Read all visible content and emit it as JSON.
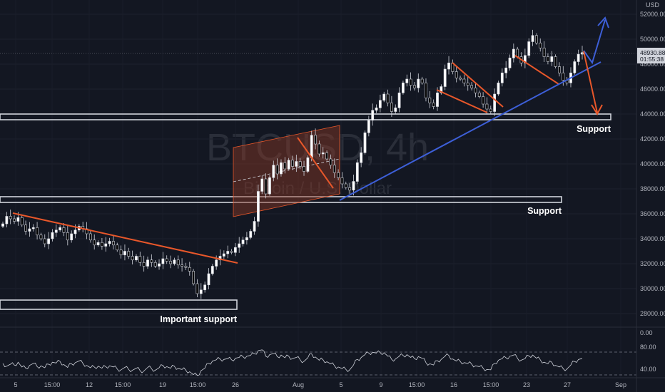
{
  "chart_data": {
    "type": "candlestick",
    "title": "BTCUSD, 4h",
    "subtitle": "Bitcoin / U.S. Dollar",
    "currency": "USD",
    "price_range": [
      27000,
      53000
    ],
    "price_ticks": [
      28000,
      30000,
      32000,
      34000,
      36000,
      38000,
      40000,
      42000,
      44000,
      46000,
      48000,
      50000,
      52000
    ],
    "x_ticks": [
      "5",
      "15:00",
      "12",
      "15:00",
      "19",
      "15:00",
      "26",
      "Aug",
      "5",
      "9",
      "15:00",
      "16",
      "15:00",
      "23",
      "27",
      "Sep"
    ],
    "last_price": "48930.88",
    "countdown": "01:55:38",
    "close_series": [
      35200,
      35800,
      35600,
      35400,
      35700,
      35100,
      34600,
      34800,
      34900,
      34300,
      34000,
      33600,
      34000,
      34500,
      34700,
      34900,
      34500,
      33900,
      34400,
      34700,
      35000,
      34800,
      34400,
      33900,
      33500,
      33700,
      33400,
      33600,
      33800,
      33500,
      33100,
      32700,
      33000,
      32600,
      32300,
      32600,
      32100,
      31800,
      32300,
      32100,
      31800,
      32000,
      32400,
      32200,
      32000,
      32300,
      31900,
      31800,
      31700,
      31400,
      30400,
      29600,
      29900,
      30300,
      31200,
      31800,
      32300,
      32600,
      32800,
      33000,
      32900,
      33300,
      33600,
      33900,
      34100,
      34600,
      35400,
      37800,
      38800,
      37600,
      38900,
      39900,
      39200,
      40100,
      39600,
      40300,
      39800,
      40200,
      39800,
      39400,
      40500,
      42300,
      41600,
      40800,
      40900,
      40400,
      39900,
      39300,
      38900,
      38400,
      38100,
      37900,
      38600,
      40100,
      40900,
      42500,
      43500,
      44300,
      44500,
      45100,
      45600,
      44900,
      44200,
      44500,
      45700,
      46500,
      46800,
      46300,
      46100,
      46800,
      46500,
      45300,
      44900,
      44600,
      45700,
      46200,
      47600,
      48100,
      47400,
      46900,
      46800,
      46500,
      46300,
      46100,
      45700,
      45400,
      44800,
      44400,
      44200,
      45600,
      46500,
      47300,
      47700,
      48500,
      49200,
      48600,
      48100,
      48700,
      49800,
      50300,
      49700,
      49300,
      48600,
      48200,
      48600,
      47800,
      47300,
      46700,
      46500,
      47300,
      48200,
      48800,
      48930
    ],
    "rsi": {
      "levels": [
        "80.00",
        "40.00",
        "0.00"
      ],
      "values": [
        52,
        45,
        50,
        48,
        55,
        43,
        40,
        47,
        52,
        44,
        46,
        41,
        50,
        55,
        53,
        57,
        49,
        42,
        51,
        54,
        58,
        52,
        47,
        41,
        43,
        45,
        40,
        44,
        46,
        43,
        38,
        36,
        42,
        37,
        35,
        40,
        34,
        33,
        42,
        39,
        35,
        41,
        47,
        44,
        40,
        45,
        39,
        37,
        35,
        31,
        24,
        22,
        34,
        40,
        52,
        58,
        61,
        63,
        62,
        64,
        61,
        65,
        67,
        69,
        70,
        72,
        76,
        84,
        86,
        70,
        74,
        77,
        69,
        73,
        66,
        70,
        64,
        67,
        61,
        57,
        66,
        76,
        68,
        60,
        61,
        56,
        51,
        46,
        43,
        39,
        37,
        36,
        48,
        62,
        67,
        74,
        78,
        80,
        78,
        79,
        79,
        70,
        62,
        63,
        70,
        72,
        74,
        67,
        64,
        69,
        65,
        54,
        51,
        48,
        59,
        62,
        70,
        72,
        63,
        58,
        57,
        54,
        52,
        50,
        46,
        44,
        40,
        37,
        36,
        52,
        60,
        64,
        66,
        70,
        73,
        65,
        60,
        64,
        71,
        73,
        65,
        61,
        55,
        51,
        55,
        47,
        43,
        39,
        38,
        48,
        57,
        62,
        64
      ]
    },
    "annotations": {
      "support_upper": "Support",
      "support_mid": "Support",
      "support_lower": "Important support"
    },
    "colors": {
      "background": "#131722",
      "candle_up": "#ffffff",
      "candle_down": "#000000",
      "trendline_red": "#e8572a",
      "trendline_blue": "#3d5fd8",
      "support_box": "#d1d4dc",
      "channel_fill": "#8b3a26",
      "rsi_line": "#d1d4dc",
      "price_label_bg": "#d1d4dc"
    }
  }
}
